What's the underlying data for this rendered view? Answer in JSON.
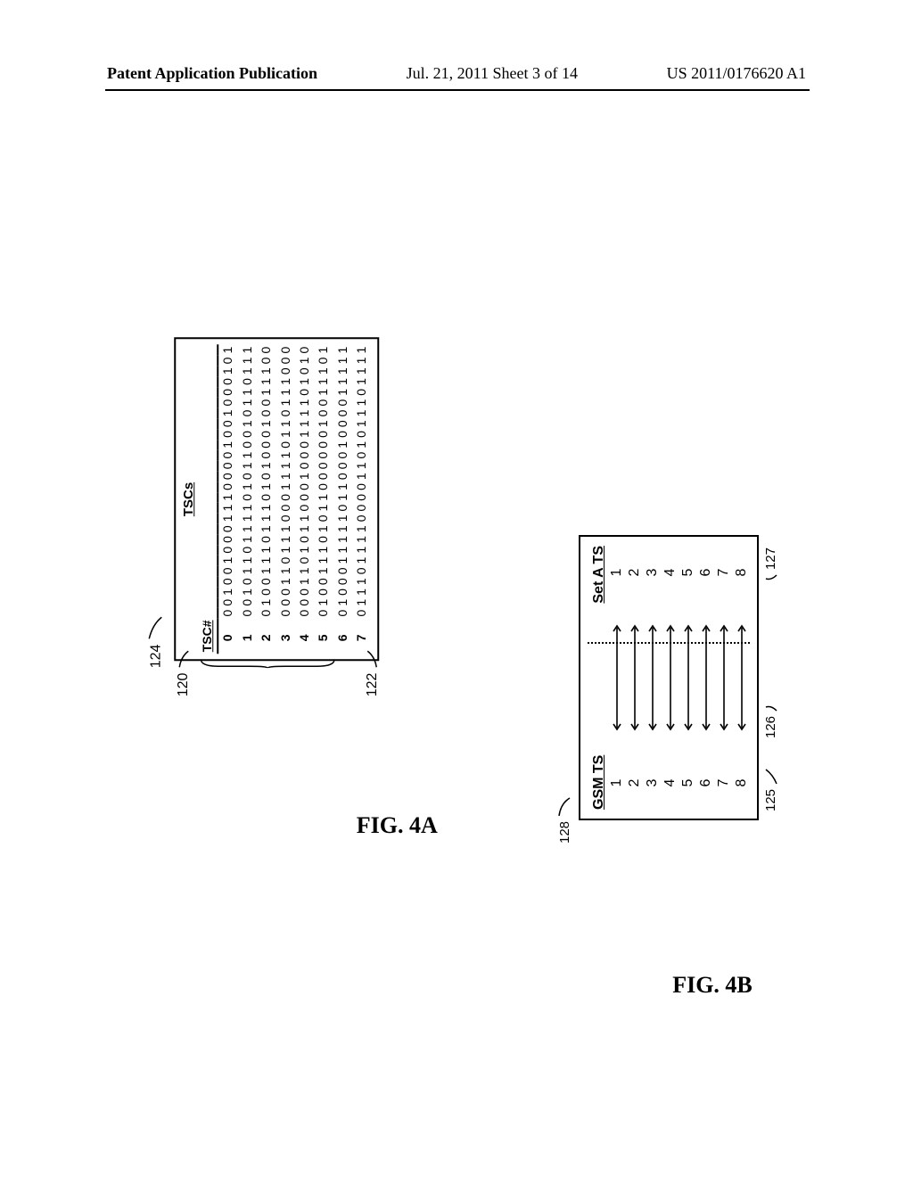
{
  "header": {
    "left": "Patent Application Publication",
    "center": "Jul. 21, 2011  Sheet 3 of 14",
    "right": "US 2011/0176620 A1"
  },
  "fig4a": {
    "caption": "FIG. 4A",
    "row_label": "TSC#",
    "col_label": "TSCs",
    "ref_top": "120",
    "ref_rows": "122",
    "ref_box": "124",
    "rows": [
      {
        "n": "0",
        "bits": [
          "0",
          "0",
          "1",
          "0",
          "0",
          "1",
          "0",
          "0",
          "0",
          "1",
          "1",
          "1",
          "0",
          "0",
          "0",
          "0",
          "1",
          "0",
          "0",
          "1",
          "0",
          "0",
          "0",
          "1",
          "0",
          "1"
        ]
      },
      {
        "n": "1",
        "bits": [
          "0",
          "0",
          "1",
          "0",
          "1",
          "1",
          "0",
          "1",
          "1",
          "1",
          "1",
          "0",
          "1",
          "0",
          "1",
          "1",
          "0",
          "0",
          "1",
          "0",
          "1",
          "1",
          "0",
          "1",
          "1",
          "1"
        ]
      },
      {
        "n": "2",
        "bits": [
          "0",
          "1",
          "0",
          "0",
          "1",
          "1",
          "1",
          "0",
          "1",
          "1",
          "1",
          "0",
          "1",
          "0",
          "1",
          "0",
          "0",
          "0",
          "1",
          "0",
          "0",
          "1",
          "1",
          "1",
          "0",
          "0"
        ]
      },
      {
        "n": "3",
        "bits": [
          "0",
          "0",
          "0",
          "1",
          "1",
          "0",
          "1",
          "1",
          "1",
          "0",
          "0",
          "0",
          "1",
          "1",
          "1",
          "1",
          "0",
          "1",
          "1",
          "0",
          "1",
          "1",
          "1",
          "0",
          "0",
          "0"
        ]
      },
      {
        "n": "4",
        "bits": [
          "0",
          "0",
          "0",
          "1",
          "1",
          "0",
          "1",
          "0",
          "1",
          "1",
          "0",
          "0",
          "0",
          "1",
          "0",
          "0",
          "0",
          "1",
          "1",
          "1",
          "1",
          "0",
          "1",
          "0",
          "1",
          "0"
        ]
      },
      {
        "n": "5",
        "bits": [
          "0",
          "1",
          "0",
          "0",
          "1",
          "1",
          "1",
          "0",
          "1",
          "0",
          "1",
          "1",
          "0",
          "0",
          "0",
          "0",
          "0",
          "0",
          "1",
          "0",
          "0",
          "1",
          "1",
          "1",
          "0",
          "1"
        ]
      },
      {
        "n": "6",
        "bits": [
          "0",
          "1",
          "0",
          "0",
          "0",
          "1",
          "1",
          "1",
          "1",
          "1",
          "0",
          "1",
          "1",
          "0",
          "0",
          "0",
          "1",
          "0",
          "0",
          "0",
          "0",
          "1",
          "1",
          "1",
          "1",
          "1"
        ]
      },
      {
        "n": "7",
        "bits": [
          "0",
          "1",
          "1",
          "1",
          "0",
          "1",
          "1",
          "1",
          "1",
          "0",
          "0",
          "0",
          "0",
          "1",
          "1",
          "0",
          "1",
          "0",
          "1",
          "1",
          "1",
          "0",
          "1",
          "1",
          "1",
          "1"
        ]
      }
    ]
  },
  "fig4b": {
    "caption": "FIG. 4B",
    "left_hdr": "GSM TS",
    "right_hdr": "Set A TS",
    "ref_box": "128",
    "ref_left_col": "125",
    "ref_left_last": "126",
    "ref_right_last": "127",
    "maps": [
      {
        "l": "1",
        "r": "1"
      },
      {
        "l": "2",
        "r": "2"
      },
      {
        "l": "3",
        "r": "3"
      },
      {
        "l": "4",
        "r": "4"
      },
      {
        "l": "5",
        "r": "5"
      },
      {
        "l": "6",
        "r": "6"
      },
      {
        "l": "7",
        "r": "7"
      },
      {
        "l": "8",
        "r": "8"
      }
    ]
  }
}
